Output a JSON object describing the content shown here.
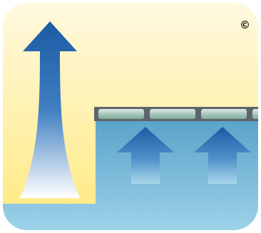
{
  "copyright_mark": "©",
  "colors": {
    "sky_top": "#fff9e0",
    "sky_bottom": "#ffe97e",
    "water_top": "#5aa3c9",
    "water_bottom": "#9fd3ea",
    "arrow_dark": "#1c5aa4",
    "arrow_light": "#ffffff",
    "glass": "#a7c9bb",
    "frame": "#5e646b"
  },
  "icons": {
    "tall_arrow": "large-upward-arrow-icon",
    "small_arrows": "upward-arrow-icon",
    "cover": "pool-cover-panels"
  }
}
